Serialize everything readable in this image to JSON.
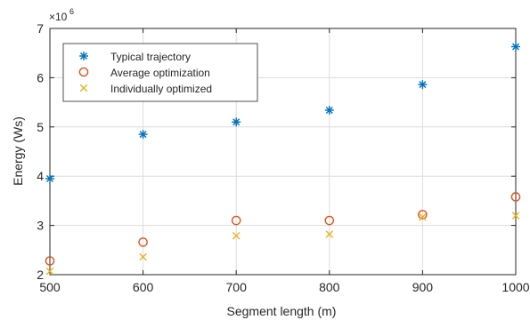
{
  "chart_data": {
    "type": "scatter",
    "title": "",
    "xlabel": "Segment length (m)",
    "ylabel": "Energy (Ws)",
    "y_multiplier_label": "×10",
    "y_multiplier_exponent": "6",
    "xlim": [
      500,
      1000
    ],
    "ylim": [
      2,
      7
    ],
    "xticks": [
      500,
      600,
      700,
      800,
      900,
      1000
    ],
    "yticks": [
      2,
      3,
      4,
      5,
      6,
      7
    ],
    "grid": true,
    "legend_position": "top-left",
    "x": [
      500,
      600,
      700,
      800,
      900,
      1000
    ],
    "series": [
      {
        "name": "Typical trajectory",
        "marker": "asterisk",
        "color": "#0072BD",
        "values": [
          3.95,
          4.85,
          5.1,
          5.34,
          5.86,
          6.63
        ]
      },
      {
        "name": "Average optimization",
        "marker": "circle",
        "color": "#D95319",
        "values": [
          2.28,
          2.66,
          3.1,
          3.1,
          3.22,
          3.58
        ]
      },
      {
        "name": "Individually optimized",
        "marker": "x",
        "color": "#EDB120",
        "values": [
          2.07,
          2.36,
          2.79,
          2.82,
          3.17,
          3.2
        ]
      }
    ]
  }
}
